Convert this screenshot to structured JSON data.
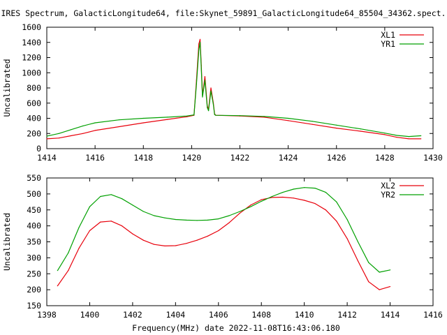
{
  "title": "IRES Spectrum, GalacticLongitude64, file:Skynet_59891_GalacticLongitude64_85504_34362.spect.",
  "xlabel": "Frequency(MHz) date 2022-11-08T16:43:06.180",
  "colors": {
    "red": "#e8000b",
    "green": "#00a000"
  },
  "chart_data": [
    {
      "type": "line",
      "ylabel": "Uncalibrated",
      "xlim": [
        1414,
        1430
      ],
      "ylim": [
        0,
        1600
      ],
      "xticks": [
        1414,
        1416,
        1418,
        1420,
        1422,
        1424,
        1426,
        1428,
        1430
      ],
      "yticks": [
        0,
        200,
        400,
        600,
        800,
        1000,
        1200,
        1400,
        1600
      ],
      "grid": false,
      "legend": "top-right",
      "series": [
        {
          "name": "XL1",
          "color": "#e8000b",
          "x": [
            1414.0,
            1414.5,
            1415.0,
            1415.5,
            1416.0,
            1417.0,
            1418.0,
            1419.0,
            1419.8,
            1420.1,
            1420.2,
            1420.3,
            1420.35,
            1420.4,
            1420.45,
            1420.55,
            1420.65,
            1420.7,
            1420.8,
            1420.9,
            1420.95,
            1421.0,
            1422.0,
            1423.0,
            1424.0,
            1425.0,
            1426.0,
            1427.0,
            1428.0,
            1428.5,
            1429.0,
            1429.5
          ],
          "y": [
            130,
            140,
            170,
            200,
            240,
            290,
            340,
            385,
            420,
            440,
            900,
            1380,
            1440,
            1100,
            700,
            950,
            560,
            520,
            800,
            600,
            460,
            440,
            430,
            415,
            370,
            320,
            270,
            230,
            185,
            150,
            130,
            130
          ]
        },
        {
          "name": "YR1",
          "color": "#00a000",
          "x": [
            1414.0,
            1414.5,
            1415.0,
            1415.5,
            1416.0,
            1417.0,
            1418.0,
            1419.0,
            1419.8,
            1420.1,
            1420.2,
            1420.3,
            1420.35,
            1420.4,
            1420.45,
            1420.55,
            1420.65,
            1420.7,
            1420.8,
            1420.9,
            1420.95,
            1421.0,
            1422.0,
            1423.0,
            1424.0,
            1425.0,
            1426.0,
            1427.0,
            1428.0,
            1428.5,
            1429.0,
            1429.5
          ],
          "y": [
            165,
            200,
            250,
            300,
            340,
            380,
            400,
            415,
            430,
            445,
            850,
            1300,
            1400,
            1050,
            680,
            900,
            540,
            500,
            760,
            580,
            450,
            440,
            435,
            425,
            400,
            360,
            310,
            260,
            205,
            175,
            160,
            170
          ]
        }
      ]
    },
    {
      "type": "line",
      "ylabel": "Uncalibrated",
      "xlim": [
        1398,
        1416
      ],
      "ylim": [
        150,
        550
      ],
      "xticks": [
        1398,
        1400,
        1402,
        1404,
        1406,
        1408,
        1410,
        1412,
        1414,
        1416
      ],
      "yticks": [
        150,
        200,
        250,
        300,
        350,
        400,
        450,
        500,
        550
      ],
      "grid": false,
      "legend": "top-right",
      "series": [
        {
          "name": "XL2",
          "color": "#e8000b",
          "x": [
            1398.5,
            1399.0,
            1399.5,
            1400.0,
            1400.5,
            1401.0,
            1401.5,
            1402.0,
            1402.5,
            1403.0,
            1403.5,
            1404.0,
            1404.5,
            1405.0,
            1405.5,
            1406.0,
            1406.5,
            1407.0,
            1407.5,
            1408.0,
            1408.5,
            1409.0,
            1409.5,
            1410.0,
            1410.5,
            1411.0,
            1411.5,
            1412.0,
            1412.5,
            1413.0,
            1413.5,
            1414.0
          ],
          "y": [
            212,
            260,
            330,
            385,
            412,
            415,
            400,
            375,
            355,
            342,
            337,
            338,
            345,
            355,
            368,
            385,
            410,
            440,
            465,
            482,
            489,
            490,
            487,
            480,
            470,
            450,
            415,
            360,
            290,
            225,
            200,
            210
          ]
        },
        {
          "name": "YR2",
          "color": "#00a000",
          "x": [
            1398.5,
            1399.0,
            1399.5,
            1400.0,
            1400.5,
            1401.0,
            1401.5,
            1402.0,
            1402.5,
            1403.0,
            1403.5,
            1404.0,
            1404.5,
            1405.0,
            1405.5,
            1406.0,
            1406.5,
            1407.0,
            1407.5,
            1408.0,
            1408.5,
            1409.0,
            1409.5,
            1410.0,
            1410.5,
            1411.0,
            1411.5,
            1412.0,
            1412.5,
            1413.0,
            1413.5,
            1414.0
          ],
          "y": [
            260,
            315,
            395,
            460,
            492,
            498,
            485,
            465,
            445,
            432,
            425,
            420,
            418,
            417,
            418,
            422,
            432,
            445,
            460,
            477,
            492,
            505,
            515,
            520,
            518,
            505,
            475,
            420,
            350,
            285,
            255,
            262
          ]
        }
      ]
    }
  ]
}
